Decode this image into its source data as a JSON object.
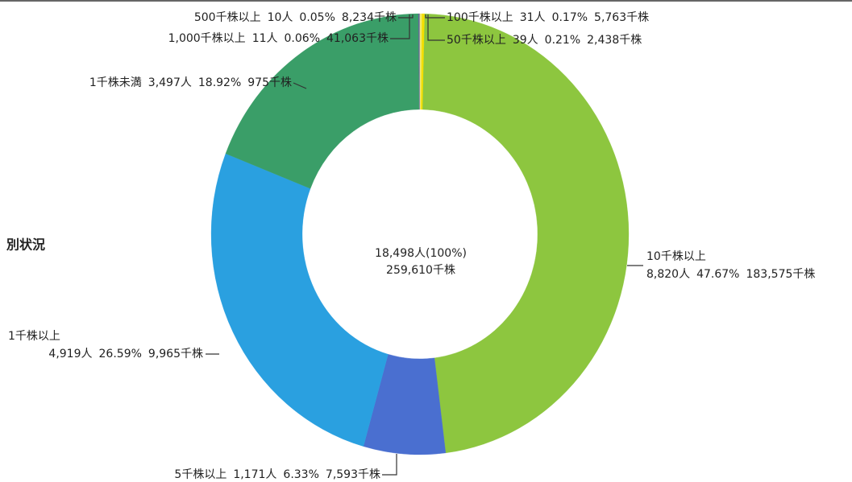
{
  "chart_data": {
    "type": "donut",
    "title": "別状況",
    "center_text": [
      "18,498人(100%)",
      "259,610千株"
    ],
    "categories": [
      "1,000千株以上",
      "500千株以上",
      "100千株以上",
      "50千株以上",
      "10千株以上",
      "5千株以上",
      "1千株以上",
      "1千株未満"
    ],
    "holders": [
      "11人",
      "10人",
      "31人",
      "39人",
      "8,820人",
      "1,171人",
      "4,919人",
      "3,497人"
    ],
    "values": [
      0.06,
      0.05,
      0.17,
      0.21,
      47.67,
      6.33,
      26.59,
      18.92
    ],
    "value_labels": [
      "0.06%",
      "0.05%",
      "0.17%",
      "0.21%",
      "47.67%",
      "6.33%",
      "26.59%",
      "18.92%"
    ],
    "shares": [
      "41,063千株",
      "8,234千株",
      "5,763千株",
      "2,438千株",
      "183,575千株",
      "7,593千株",
      "9,965千株",
      "975千株"
    ],
    "colors": [
      "#7d4fa6",
      "#3f5cb8",
      "#f2e86e",
      "#f4df00",
      "#8dc63f",
      "#4a6fd0",
      "#2aa0e0",
      "#3a9e68"
    ]
  }
}
